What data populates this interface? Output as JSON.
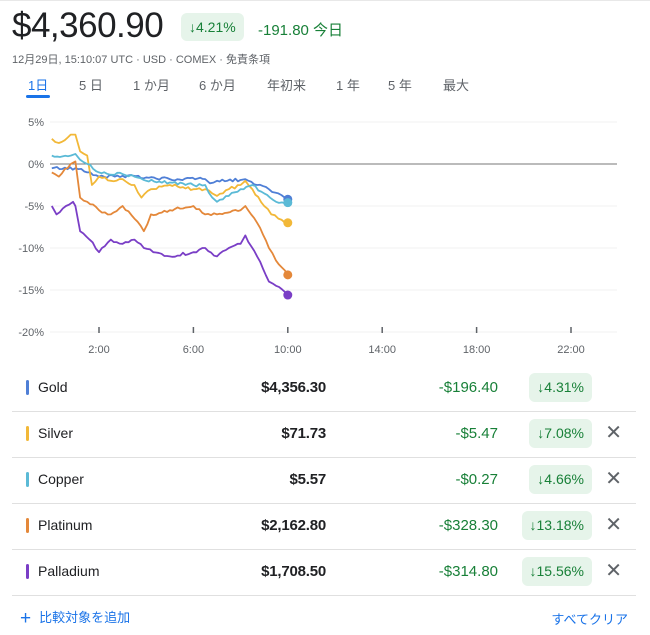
{
  "header": {
    "price": "$4,360.90",
    "change_pct": "↓4.21%",
    "change_abs": "-191.80",
    "today": "今日",
    "subtitle": "12月29日, 15:10:07 UTC · USD · COMEX · 免責条項"
  },
  "tabs": [
    {
      "label": "1日",
      "active": true
    },
    {
      "label": "5 日"
    },
    {
      "label": "1 か月"
    },
    {
      "label": "6 か月"
    },
    {
      "label": "年初来"
    },
    {
      "label": "1 年"
    },
    {
      "label": "5 年"
    },
    {
      "label": "最大"
    }
  ],
  "colors": {
    "accent": "#1a73e8",
    "positive_green": "#188038",
    "badge_bg": "#e6f4ea"
  },
  "chart_data": {
    "type": "line",
    "ylim": [
      -20,
      5
    ],
    "yticks": [
      "5%",
      "0%",
      "-5%",
      "-10%",
      "-15%",
      "-20%"
    ],
    "ytick_values": [
      5,
      0,
      -5,
      -10,
      -15,
      -20
    ],
    "xlim": [
      "0:00",
      "23:59"
    ],
    "xticks": [
      "2:00",
      "6:00",
      "10:00",
      "14:00",
      "18:00",
      "22:00"
    ],
    "baseline": 0,
    "series": [
      {
        "name": "Gold",
        "color": "#4f7fd6",
        "x": [
          "0:00",
          "1:00",
          "1:30",
          "2:00",
          "3:00",
          "4:00",
          "5:00",
          "6:30",
          "6:42",
          "7:00",
          "8:00",
          "8:12",
          "8:42",
          "9:12",
          "9:36",
          "10:00"
        ],
        "values": [
          -0.5,
          -0.5,
          -1,
          -1.5,
          -1.4,
          -1.6,
          -1.8,
          -1.8,
          -2.3,
          -2,
          -1.9,
          -1.8,
          -2.5,
          -3,
          -3.5,
          -4.2
        ]
      },
      {
        "name": "Silver",
        "color": "#f2b838",
        "x": [
          "0:00",
          "0:18",
          "0:48",
          "1:00",
          "1:12",
          "1:30",
          "1:42",
          "2:00",
          "2:30",
          "3:00",
          "3:30",
          "3:48",
          "4:12",
          "5:00",
          "6:00",
          "6:30",
          "6:48",
          "7:00",
          "7:30",
          "8:00",
          "8:12",
          "8:30",
          "9:00",
          "9:18",
          "9:36",
          "10:00"
        ],
        "values": [
          3,
          2.5,
          3.5,
          3.5,
          1.5,
          1,
          -2.5,
          -1.5,
          -2,
          -1.8,
          -2.5,
          -4,
          -3,
          -2.5,
          -3,
          -3,
          -3.5,
          -3.8,
          -3,
          -2.5,
          -2,
          -3,
          -5,
          -6,
          -6.5,
          -7
        ]
      },
      {
        "name": "Copper",
        "color": "#5bbad6",
        "x": [
          "0:00",
          "0:48",
          "1:00",
          "1:12",
          "1:30",
          "2:00",
          "3:00",
          "3:30",
          "4:00",
          "5:00",
          "6:00",
          "6:30",
          "6:48",
          "7:00",
          "7:30",
          "8:00",
          "8:30",
          "9:00",
          "9:30",
          "10:00"
        ],
        "values": [
          1,
          1,
          1.2,
          0.5,
          0,
          -1,
          -1.2,
          -1.5,
          -2,
          -2.2,
          -2.5,
          -2.5,
          -4,
          -4.5,
          -3.8,
          -3,
          -2.5,
          -3.5,
          -4.5,
          -4.6
        ]
      },
      {
        "name": "Platinum",
        "color": "#e4883a",
        "x": [
          "0:00",
          "0:18",
          "0:48",
          "1:00",
          "1:12",
          "1:30",
          "2:00",
          "2:30",
          "3:00",
          "3:30",
          "3:54",
          "4:12",
          "5:00",
          "6:00",
          "6:30",
          "7:00",
          "8:00",
          "8:12",
          "8:42",
          "9:12",
          "9:30",
          "10:00"
        ],
        "values": [
          -1,
          -1.5,
          0,
          0.3,
          -4,
          -4.5,
          -5.5,
          -6,
          -5,
          -6.5,
          -8,
          -6,
          -5.5,
          -5,
          -6,
          -6,
          -5.5,
          -5,
          -7,
          -10,
          -11.5,
          -13.2
        ]
      },
      {
        "name": "Palladium",
        "color": "#7a3ec6",
        "x": [
          "0:00",
          "0:12",
          "0:36",
          "0:54",
          "1:00",
          "1:12",
          "1:36",
          "2:00",
          "2:30",
          "3:00",
          "3:30",
          "3:54",
          "4:18",
          "5:00",
          "6:00",
          "6:30",
          "7:00",
          "7:30",
          "8:00",
          "8:12",
          "8:42",
          "9:12",
          "9:30",
          "10:00"
        ],
        "values": [
          -5,
          -6,
          -5,
          -4.5,
          -5,
          -8,
          -9,
          -10.5,
          -9,
          -9.5,
          -9,
          -10,
          -10.5,
          -11,
          -10.5,
          -10,
          -11,
          -10,
          -9.5,
          -8.5,
          -11,
          -14,
          -14.5,
          -15.6
        ]
      }
    ]
  },
  "comparisons": [
    {
      "name": "Gold",
      "price": "$4,356.30",
      "change": "-$196.40",
      "pct": "↓4.31%",
      "removable": false
    },
    {
      "name": "Silver",
      "price": "$71.73",
      "change": "-$5.47",
      "pct": "↓7.08%",
      "removable": true
    },
    {
      "name": "Copper",
      "price": "$5.57",
      "change": "-$0.27",
      "pct": "↓4.66%",
      "removable": true
    },
    {
      "name": "Platinum",
      "price": "$2,162.80",
      "change": "-$328.30",
      "pct": "↓13.18%",
      "removable": true
    },
    {
      "name": "Palladium",
      "price": "$1,708.50",
      "change": "-$314.80",
      "pct": "↓15.56%",
      "removable": true
    }
  ],
  "footer": {
    "add_label": "比較対象を追加",
    "clear_label": "すべてクリア"
  }
}
